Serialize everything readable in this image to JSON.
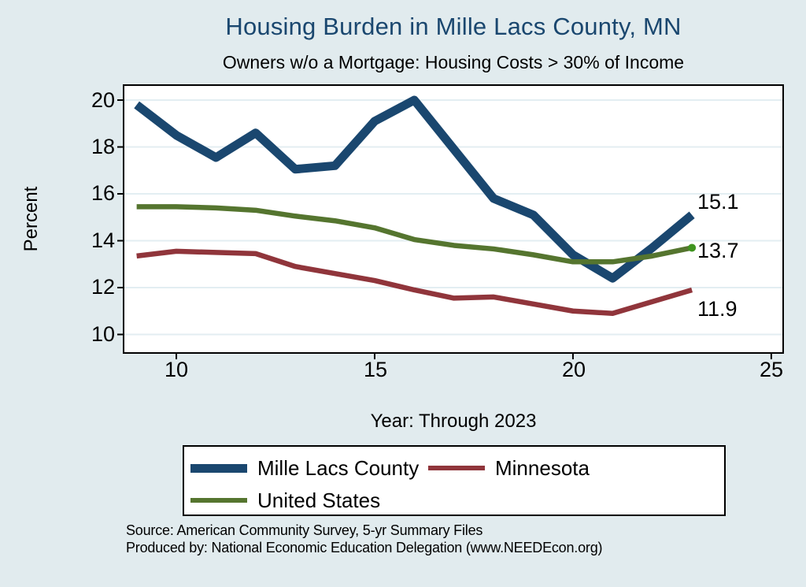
{
  "title": "Housing Burden in Mille Lacs County, MN",
  "subtitle": "Owners w/o a Mortgage: Housing Costs > 30% of Income",
  "chart_data": {
    "type": "line",
    "title": "Housing Burden in Mille Lacs County, MN",
    "subtitle": "Owners w/o a Mortgage: Housing Costs > 30% of Income",
    "xlabel": "Year: Through 2023",
    "ylabel": "Percent",
    "xlim": [
      8.67,
      25.3
    ],
    "ylim": [
      9.21,
      20.64
    ],
    "x_ticks": [
      10,
      15,
      20,
      25
    ],
    "y_ticks": [
      10,
      12,
      14,
      16,
      18,
      20
    ],
    "grid": "horizontal",
    "legend_position": "bottom",
    "x": [
      9,
      10,
      11,
      12,
      13,
      14,
      15,
      16,
      17,
      18,
      19,
      20,
      21,
      22,
      23
    ],
    "series": [
      {
        "name": "Mille Lacs County",
        "color": "#1a476f",
        "width": 11,
        "values": [
          19.8,
          18.5,
          17.55,
          18.6,
          17.05,
          17.2,
          19.1,
          20.0,
          17.9,
          15.8,
          15.1,
          13.4,
          12.4,
          13.7,
          15.1
        ],
        "end_label": "15.1"
      },
      {
        "name": "Minnesota",
        "color": "#90353b",
        "width": 6.5,
        "values": [
          13.35,
          13.55,
          13.5,
          13.45,
          12.9,
          12.6,
          12.3,
          11.9,
          11.55,
          11.6,
          11.3,
          11.0,
          10.9,
          11.4,
          11.9
        ],
        "end_label": "11.9"
      },
      {
        "name": "United States",
        "color": "#55752f",
        "width": 6.5,
        "values": [
          15.45,
          15.45,
          15.4,
          15.3,
          15.05,
          14.85,
          14.55,
          14.05,
          13.8,
          13.65,
          13.4,
          13.1,
          13.1,
          13.35,
          13.7
        ],
        "end_label": "13.7",
        "end_marker": true,
        "marker_color": "#3f941f"
      }
    ]
  },
  "colors": {
    "background": "#e1ebee",
    "plot_background": "#ffffff",
    "grid": "#e3eef2",
    "axis": "#000000",
    "title": "#1a476f"
  },
  "source_line1": "Source: American Community Survey, 5-yr Summary Files",
  "source_line2": "Produced by: National Economic Education Delegation (www.NEEDEcon.org)"
}
